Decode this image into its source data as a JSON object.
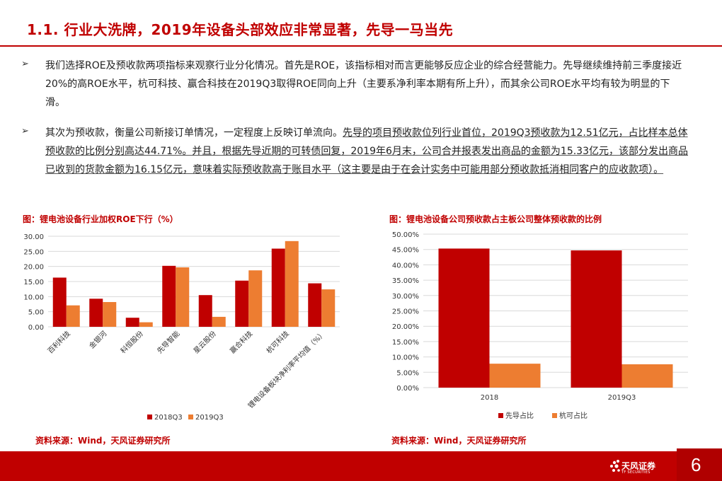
{
  "header": {
    "title": "1.1. 行业大洗牌，2019年设备头部效应非常显著，先导一马当先"
  },
  "bullets": {
    "marker": "➢",
    "p1": "我们选择ROE及预收款两项指标来观察行业分化情况。首先是ROE，该指标相对而言更能够反应企业的综合经营能力。先导继续维持前三季度接近20%的高ROE水平，杭可科技、赢合科技在2019Q3取得ROE同向上升（主要系净利率本期有所上升），而其余公司ROE水平均有较为明显的下滑。",
    "p2_plain": "其次为预收款，衡量公司新接订单情况，一定程度上反映订单流向。",
    "p2_underlined": "先导的项目预收款位列行业首位，2019Q3预收款为12.51亿元，占比样本总体预收款的比例分别高达44.71%。并且，根据先导近期的可转债回复，2019年6月末，公司合并报表发出商品的金额为15.33亿元，该部分发出商品已收到的货款金额为16.15亿元，意味着实际预收款高于账目水平（这主要是由于在会计实务中可能用部分预收款抵消相同客户的应收款项）。"
  },
  "charts": {
    "left_title": "图：锂电池设备行业加权ROE下行（%）",
    "right_title": "图：锂电池设备公司预收款占主板公司整体预收款的比例",
    "left_source": "资料来源：Wind，天风证券研究所",
    "right_source": "资料来源：Wind，天风证券研究所"
  },
  "chart_data": [
    {
      "type": "bar",
      "categories": [
        "百利科技",
        "金银河",
        "科恒股份",
        "先导智能",
        "星云股份",
        "赢合科技",
        "杭可科技",
        "锂电设备板块净利率平均值（%）"
      ],
      "series": [
        {
          "name": "2018Q3",
          "values": [
            16.3,
            9.3,
            3.0,
            20.2,
            10.5,
            15.3,
            25.9,
            14.4
          ]
        },
        {
          "name": "2019Q3",
          "values": [
            7.1,
            8.2,
            1.5,
            19.7,
            3.3,
            18.7,
            28.4,
            12.4
          ]
        }
      ],
      "ylim": [
        0,
        30
      ],
      "yticks": [
        "0.00",
        "5.00",
        "10.00",
        "15.00",
        "20.00",
        "25.00",
        "30.00"
      ],
      "grid": true,
      "legend": "bottom",
      "colors": [
        "#c00000",
        "#ed7d31"
      ]
    },
    {
      "type": "bar",
      "categories": [
        "2018",
        "2019Q3"
      ],
      "series": [
        {
          "name": "先导占比",
          "values": [
            45.3,
            44.7
          ]
        },
        {
          "name": "杭可占比",
          "values": [
            7.8,
            7.6
          ]
        }
      ],
      "ylim": [
        0,
        50
      ],
      "yticks": [
        "0.00%",
        "5.00%",
        "10.00%",
        "15.00%",
        "20.00%",
        "25.00%",
        "30.00%",
        "35.00%",
        "40.00%",
        "45.00%",
        "50.00%"
      ],
      "grid": true,
      "legend": "bottom",
      "colors": [
        "#c00000",
        "#ed7d31"
      ]
    }
  ],
  "footer": {
    "logo_text": "天风证券",
    "logo_sub": "TF SECURITIES",
    "page_number": "6"
  }
}
